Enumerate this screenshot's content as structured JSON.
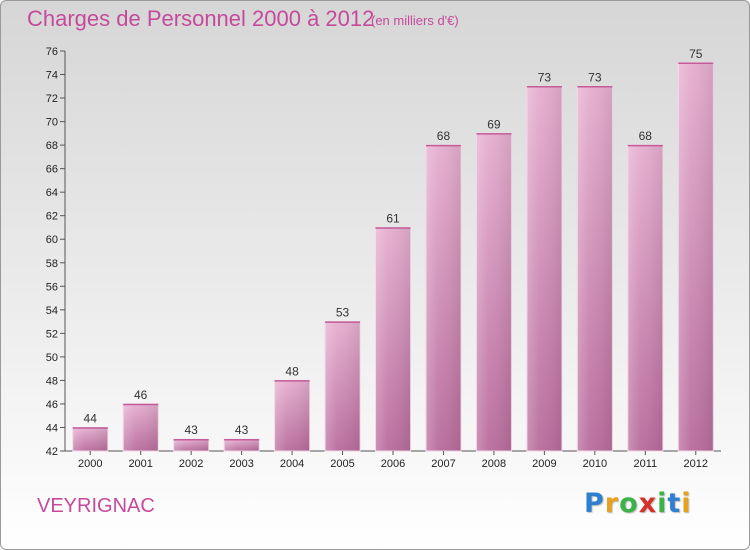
{
  "header": {
    "title": "Charges de Personnel 2000 à 2012",
    "subtitle": "(en milliers d'€)"
  },
  "footer": {
    "place": "VEYRIGNAC",
    "logo": [
      "P",
      "r",
      "o",
      "x",
      "i",
      "t",
      "i"
    ],
    "logo_colors": [
      "#2f7fd0",
      "#e8a020",
      "#3cb34a",
      "#d8302a",
      "#3cb34a",
      "#2f7fd0",
      "#e8a020"
    ]
  },
  "chart_data": {
    "type": "bar",
    "title": "Charges de Personnel 2000 à 2012",
    "subtitle": "(en milliers d'€)",
    "xlabel": "",
    "ylabel": "",
    "categories": [
      "2000",
      "2001",
      "2002",
      "2003",
      "2004",
      "2005",
      "2006",
      "2007",
      "2008",
      "2009",
      "2010",
      "2011",
      "2012"
    ],
    "values": [
      44,
      46,
      43,
      43,
      48,
      53,
      61,
      68,
      69,
      73,
      73,
      68,
      75
    ],
    "value_labels": [
      "44",
      "46",
      "43",
      "43",
      "48",
      "53",
      "61",
      "68",
      "69",
      "73",
      "73",
      "68",
      "75"
    ],
    "ylim": [
      42,
      76
    ],
    "yticks": [
      "42",
      "44",
      "46",
      "48",
      "50",
      "52",
      "54",
      "56",
      "58",
      "60",
      "62",
      "64",
      "66",
      "68",
      "70",
      "72",
      "74",
      "76"
    ],
    "grid": false,
    "bar_color": "#de9ec4"
  }
}
